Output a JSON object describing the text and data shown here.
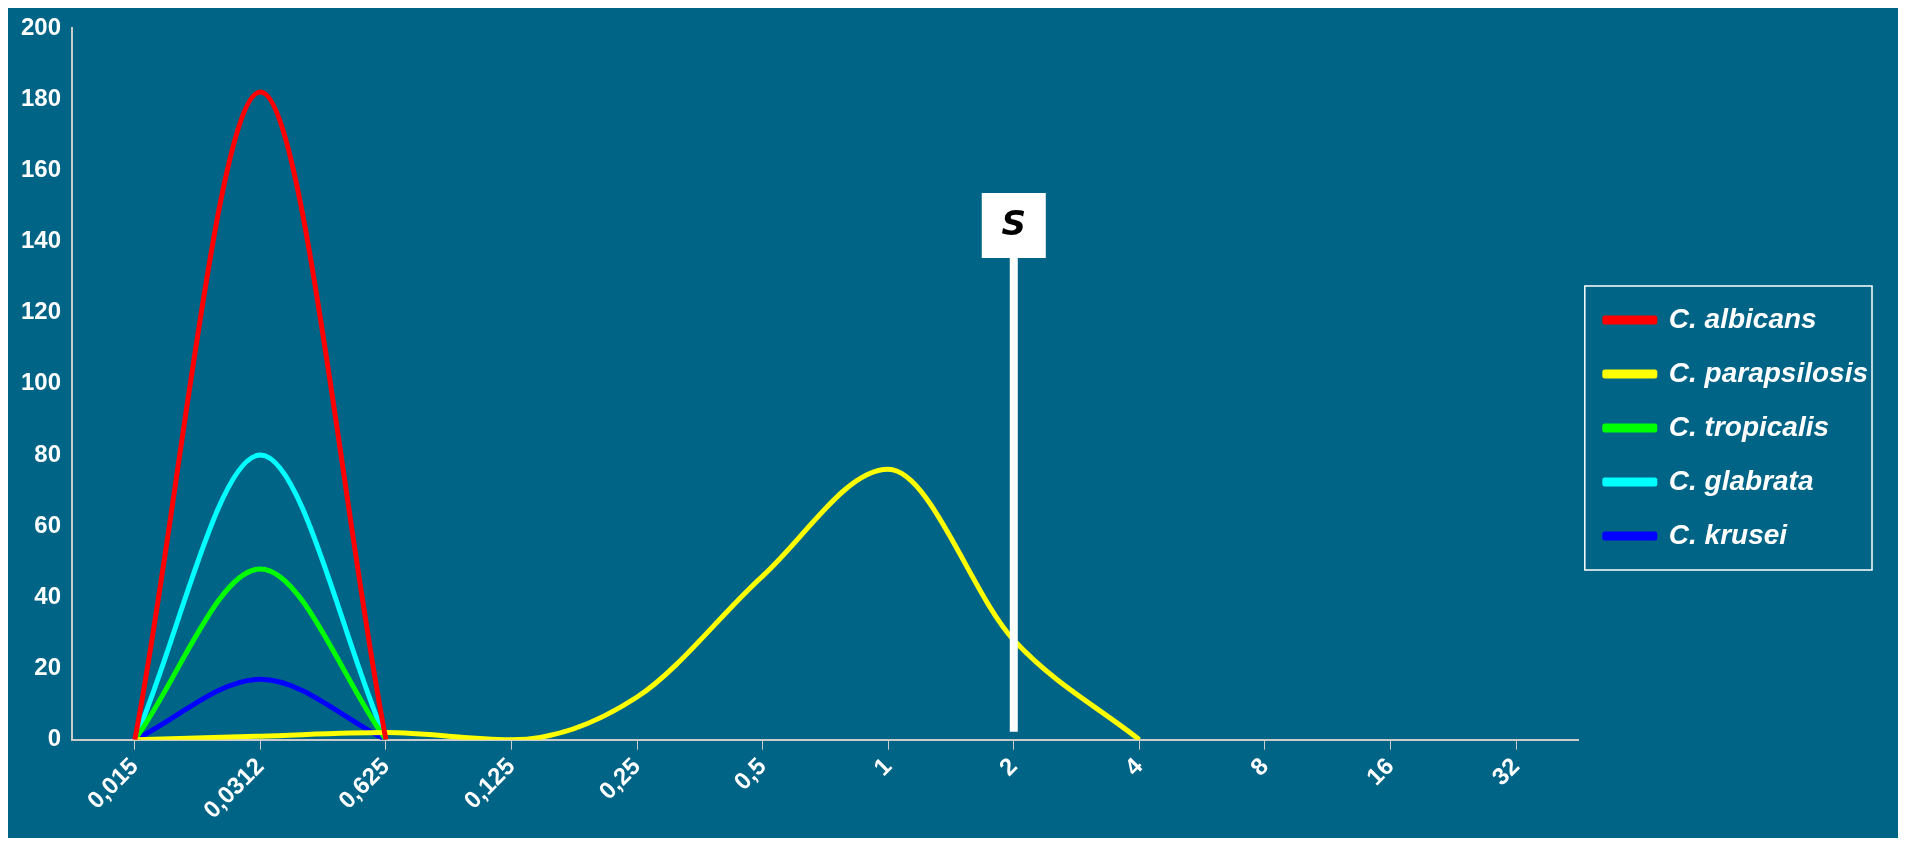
{
  "chart_data": {
    "type": "line",
    "categories": [
      "0,015",
      "0,0312",
      "0,625",
      "0,125",
      "0,25",
      "0,5",
      "1",
      "2",
      "4",
      "8",
      "16",
      "32"
    ],
    "series": [
      {
        "name": "C. albicans",
        "color": "#ff0000",
        "values": [
          0,
          182,
          0,
          null,
          null,
          null,
          null,
          null,
          null,
          null,
          null,
          null
        ]
      },
      {
        "name": "C. parapsilosis",
        "color": "#ffff00",
        "values": [
          0,
          1,
          2,
          0,
          12,
          46,
          76,
          28,
          0,
          null,
          null,
          null
        ]
      },
      {
        "name": "C. tropicalis",
        "color": "#00ff00",
        "values": [
          0,
          48,
          0,
          null,
          null,
          null,
          null,
          null,
          null,
          null,
          null,
          null
        ]
      },
      {
        "name": "C. glabrata",
        "color": "#00ffff",
        "values": [
          0,
          80,
          0,
          null,
          null,
          null,
          null,
          null,
          null,
          null,
          null,
          null
        ]
      },
      {
        "name": "C. krusei",
        "color": "#0000ff",
        "values": [
          0,
          17,
          0,
          null,
          null,
          null,
          null,
          null,
          null,
          null,
          null,
          null
        ]
      }
    ],
    "ylim": [
      0,
      200
    ],
    "yticks": [
      0,
      20,
      40,
      60,
      80,
      100,
      120,
      140,
      160,
      180,
      200
    ],
    "ref_lines": [
      {
        "axis": "x",
        "value": "2",
        "label": "S",
        "color": "#ffffff"
      }
    ],
    "legend": "right",
    "grid": false,
    "marker": "none",
    "line_style": "solid"
  }
}
